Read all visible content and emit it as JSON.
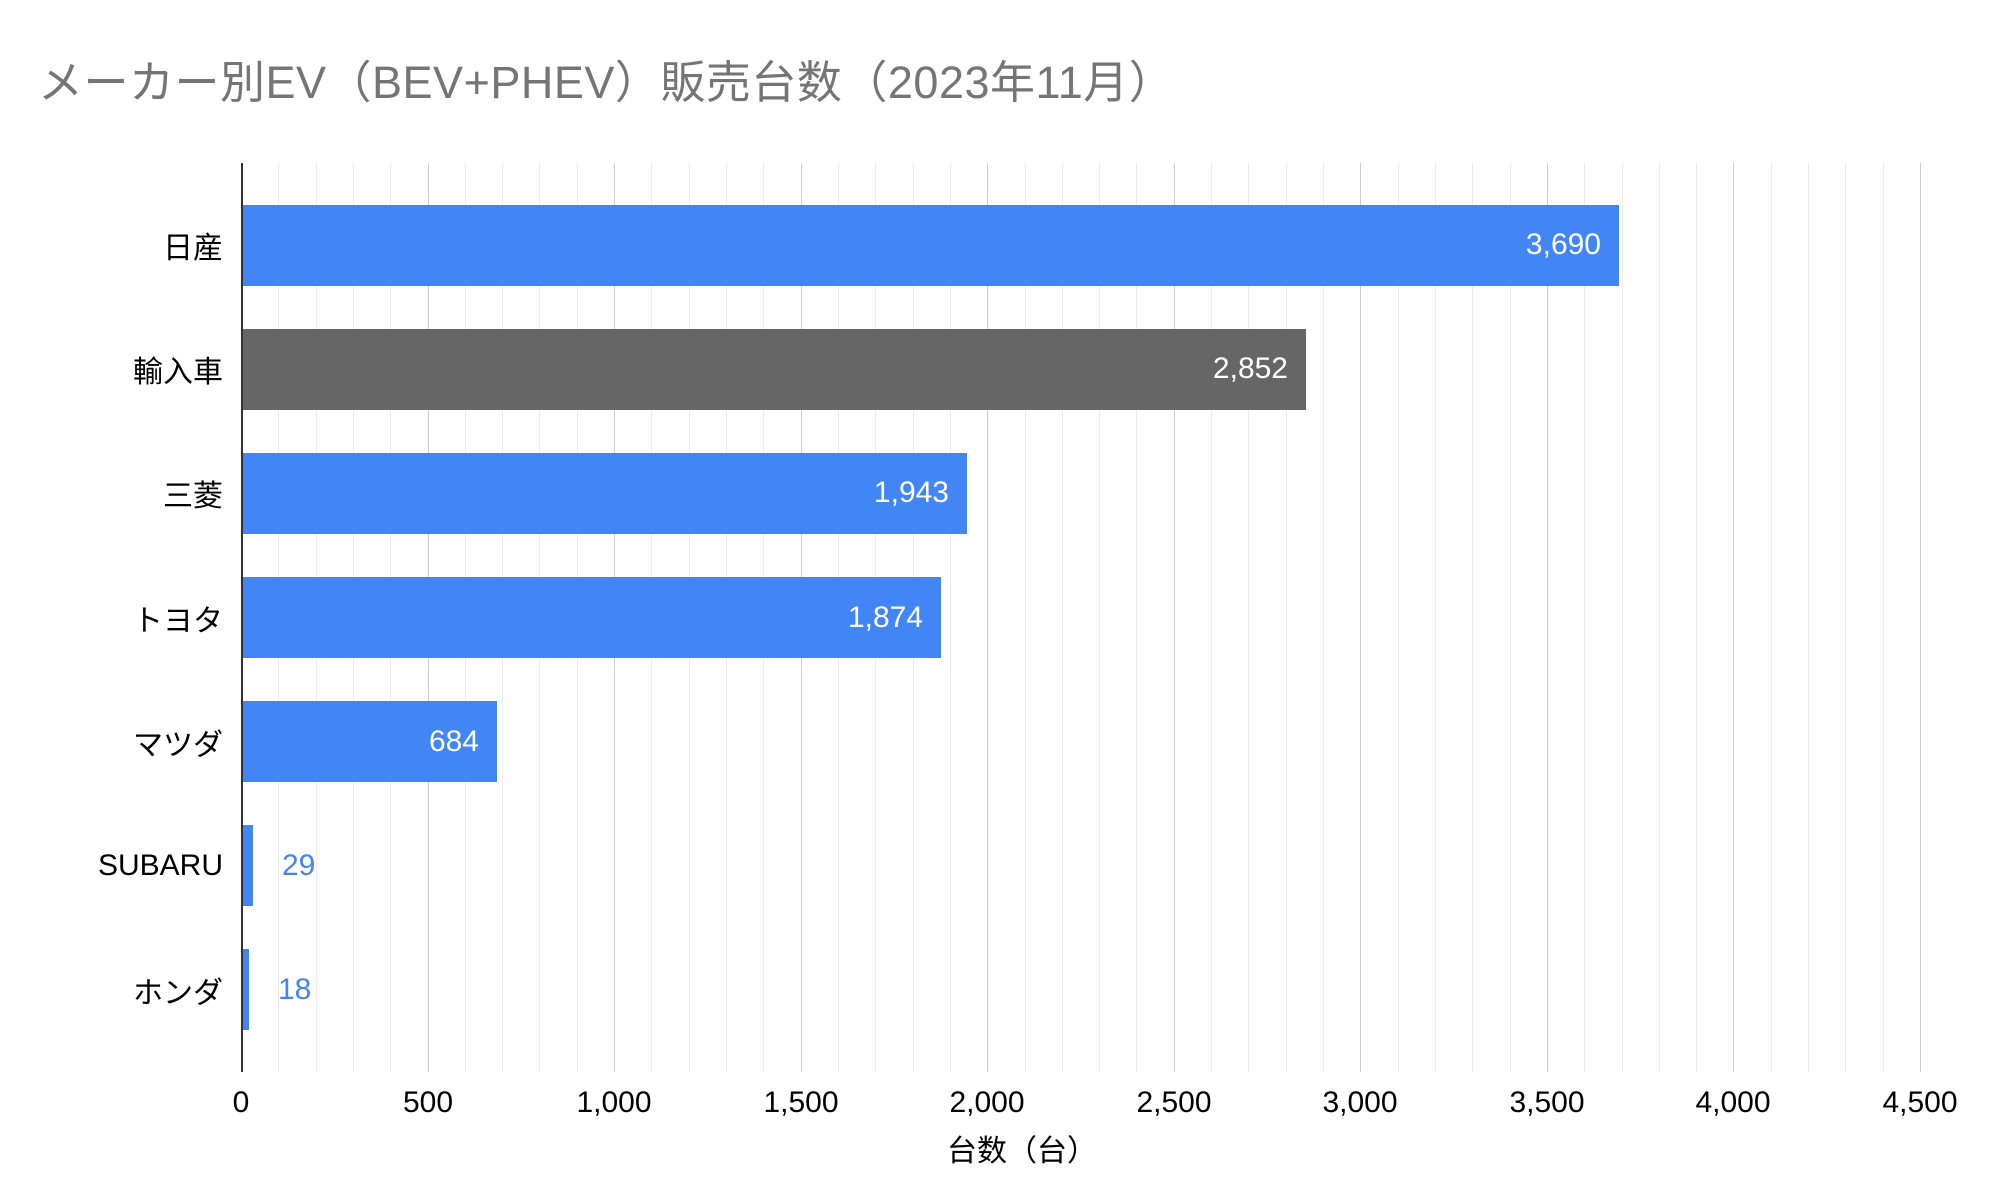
{
  "title": "メーカー別EV（BEV+PHEV）販売台数（2023年11月）",
  "colors": {
    "bar_primary": "#4285F4",
    "bar_secondary": "#666666",
    "title_text": "#757575",
    "axis_line": "#333333",
    "gridline_minor": "#ebebeb",
    "gridline_major": "#cccccc",
    "tick_text": "#000000",
    "value_label_inside": "#ffffff",
    "value_label_outside": "#4285F4"
  },
  "chart_data": {
    "type": "bar",
    "orientation": "horizontal",
    "title": "メーカー別EV（BEV+PHEV）販売台数（2023年11月）",
    "xlabel": "台数（台）",
    "ylabel": "",
    "categories": [
      "日産",
      "輸入車",
      "三菱",
      "トヨタ",
      "マツダ",
      "SUBARU",
      "ホンダ"
    ],
    "values": [
      3690,
      2852,
      1943,
      1874,
      684,
      29,
      18
    ],
    "value_labels": [
      "3,690",
      "2,852",
      "1,943",
      "1,874",
      "684",
      "29",
      "18"
    ],
    "bar_colors": [
      "#4285F4",
      "#666666",
      "#4285F4",
      "#4285F4",
      "#4285F4",
      "#4285F4",
      "#4285F4"
    ],
    "xlim": [
      0,
      4500
    ],
    "x_tick_values": [
      0,
      500,
      1000,
      1500,
      2000,
      2500,
      3000,
      3500,
      4000,
      4500
    ],
    "x_tick_labels": [
      "0",
      "500",
      "1,000",
      "1,500",
      "2,000",
      "2,500",
      "3,000",
      "3,500",
      "4,000",
      "4,500"
    ],
    "minor_grid_step": 100,
    "major_grid_step": 500,
    "grid": true,
    "legend_position": "none"
  }
}
